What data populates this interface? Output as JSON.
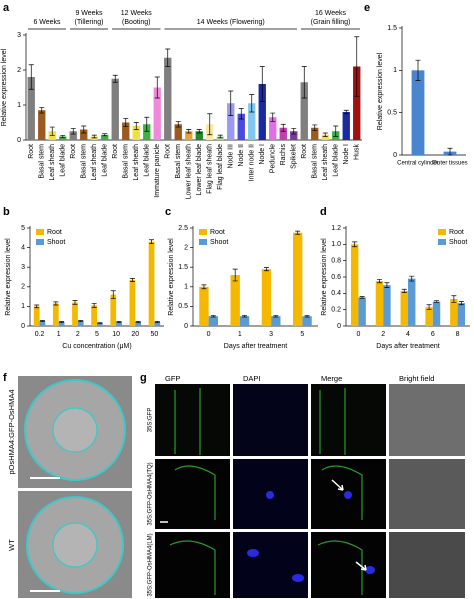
{
  "chart_data": [
    {
      "type": "bar",
      "panel_label": "a",
      "ylabel": "Relative expression level",
      "ylim": [
        0,
        3
      ],
      "yticks": [
        0,
        1,
        2,
        3
      ],
      "groups": [
        {
          "label": "6 Weeks",
          "categories": [
            "Root",
            "Basal stem",
            "Leaf sheath",
            "Leaf blade"
          ],
          "values": [
            1.8,
            0.85,
            0.25,
            0.1
          ],
          "errors": [
            0.35,
            0.08,
            0.12,
            0.03
          ],
          "colors": [
            "#7f7f7f",
            "#9c5a1e",
            "#f0e040",
            "#3cb043"
          ]
        },
        {
          "label": "9 Weeks",
          "note": "(Tillering)",
          "categories": [
            "Root",
            "Basal stem",
            "Leaf sheath",
            "Leaf blade"
          ],
          "values": [
            0.25,
            0.3,
            0.1,
            0.15
          ],
          "errors": [
            0.08,
            0.1,
            0.04,
            0.03
          ],
          "colors": [
            "#7f7f7f",
            "#9c5a1e",
            "#f0e040",
            "#3cb043"
          ]
        },
        {
          "label": "12 Weeks",
          "note": "(Booting)",
          "categories": [
            "Root",
            "Basal stem",
            "Leaf sheath",
            "Leaf blade",
            "Immature panicle"
          ],
          "values": [
            1.75,
            0.5,
            0.4,
            0.45,
            1.5
          ],
          "errors": [
            0.1,
            0.12,
            0.1,
            0.2,
            0.3
          ],
          "colors": [
            "#7f7f7f",
            "#9c5a1e",
            "#f0e040",
            "#3cb043",
            "#f08ad8"
          ]
        },
        {
          "label": "14 Weeks (Flowering)",
          "categories": [
            "Root",
            "Basal stem",
            "Lower leaf sheath",
            "Lower leaf blade",
            "Flag leaf sheath",
            "Flag leaf blade",
            "Node III",
            "Node II",
            "Inter node II",
            "Node I",
            "Peduncle",
            "Rachis",
            "Spikelet"
          ],
          "values": [
            2.35,
            0.45,
            0.25,
            0.25,
            0.45,
            0.1,
            1.05,
            0.75,
            1.05,
            1.6,
            0.65,
            0.35,
            0.25
          ],
          "errors": [
            0.25,
            0.08,
            0.05,
            0.05,
            0.3,
            0.04,
            0.35,
            0.15,
            0.25,
            0.5,
            0.12,
            0.1,
            0.08
          ],
          "colors": [
            "#7f7f7f",
            "#9c5a1e",
            "#e8a23a",
            "#1f8a2c",
            "#f8e8a0",
            "#a8e090",
            "#9a9af0",
            "#4a4ae0",
            "#80c8f0",
            "#1a2aa0",
            "#e070e0",
            "#c040b0",
            "#7a3a9a"
          ]
        },
        {
          "label": "16 Weeks",
          "note": "(Grain filling)",
          "categories": [
            "Root",
            "Basal stem",
            "Leaf sheath",
            "Leaf blade",
            "Node I",
            "Husk"
          ],
          "values": [
            1.65,
            0.35,
            0.15,
            0.25,
            0.8,
            2.1
          ],
          "errors": [
            0.45,
            0.08,
            0.05,
            0.15,
            0.05,
            0.85
          ],
          "colors": [
            "#7f7f7f",
            "#9c5a1e",
            "#f0e040",
            "#3cb043",
            "#1a2aa0",
            "#a01010"
          ]
        }
      ]
    },
    {
      "type": "bar",
      "panel_label": "e",
      "ylabel": "Relative expression level",
      "ylim": [
        0,
        1.5
      ],
      "yticks": [
        0,
        0.5,
        1,
        1.5
      ],
      "categories": [
        "Central cylinder",
        "Outer tissues"
      ],
      "values": [
        1.0,
        0.04
      ],
      "errors": [
        0.12,
        0.04
      ],
      "color": "#4a86cf"
    },
    {
      "type": "grouped_bar",
      "panel_label": "b",
      "ylabel": "Relative expression level",
      "xlabel": "Cu concentration (μM)",
      "legend": "upper left",
      "ylim": [
        0,
        5
      ],
      "yticks": [
        0,
        1,
        2,
        3,
        4,
        5
      ],
      "categories": [
        "0.2",
        "1",
        "2",
        "5",
        "10",
        "20",
        "50"
      ],
      "series": [
        {
          "name": "Root",
          "color": "#f5b800",
          "values": [
            1.0,
            1.15,
            1.2,
            1.05,
            1.6,
            2.35,
            4.3
          ],
          "errors": [
            0.07,
            0.08,
            0.1,
            0.1,
            0.2,
            0.08,
            0.1
          ]
        },
        {
          "name": "Shoot",
          "color": "#5b9bd5",
          "values": [
            0.25,
            0.2,
            0.25,
            0.15,
            0.2,
            0.2,
            0.2
          ],
          "errors": [
            0.03,
            0.03,
            0.03,
            0.02,
            0.03,
            0.03,
            0.03
          ]
        }
      ]
    },
    {
      "type": "grouped_bar",
      "panel_label": "c",
      "ylabel": "Relative expression level",
      "xlabel": "Days after treatment",
      "legend": "upper left",
      "ylim": [
        0,
        2.5
      ],
      "yticks": [
        0,
        0.5,
        1,
        1.5,
        2,
        2.5
      ],
      "categories": [
        "0",
        "1",
        "3",
        "5"
      ],
      "series": [
        {
          "name": "Root",
          "color": "#f5b800",
          "values": [
            1.0,
            1.3,
            1.45,
            2.38
          ],
          "errors": [
            0.05,
            0.15,
            0.04,
            0.04
          ]
        },
        {
          "name": "Shoot",
          "color": "#5b9bd5",
          "values": [
            0.25,
            0.25,
            0.25,
            0.25
          ],
          "errors": [
            0.02,
            0.02,
            0.02,
            0.02
          ]
        }
      ]
    },
    {
      "type": "grouped_bar",
      "panel_label": "d",
      "ylabel": "Relative expression level",
      "xlabel": "Days after treatment",
      "legend": "upper right",
      "ylim": [
        0,
        1.2
      ],
      "yticks": [
        0,
        0.2,
        0.4,
        0.6,
        0.8,
        {
          "value": 1,
          "label": "1.0"
        },
        1.2
      ],
      "categories": [
        "0",
        "2",
        "4",
        "6",
        "8"
      ],
      "series": [
        {
          "name": "Root",
          "color": "#f5b800",
          "values": [
            1.0,
            0.55,
            0.43,
            0.23,
            0.33
          ],
          "errors": [
            0.03,
            0.02,
            0.02,
            0.03,
            0.04
          ]
        },
        {
          "name": "Shoot",
          "color": "#5b9bd5",
          "values": [
            0.35,
            0.5,
            0.58,
            0.3,
            0.28
          ],
          "errors": [
            0.01,
            0.03,
            0.03,
            0.01,
            0.02
          ]
        }
      ]
    }
  ],
  "image_panels": {
    "f": {
      "panel_label": "f",
      "rows": [
        "pOsHMA4:GFP-OsHMA4",
        "WT"
      ]
    },
    "g": {
      "panel_label": "g",
      "columns": [
        "GFP",
        "DAPI",
        "Merge",
        "Bright field"
      ],
      "rows": [
        "35S:GFP",
        "35S:GFP-OsHMA4(TQ)",
        "35S:GFP-OsHMA4(LM)"
      ]
    }
  }
}
